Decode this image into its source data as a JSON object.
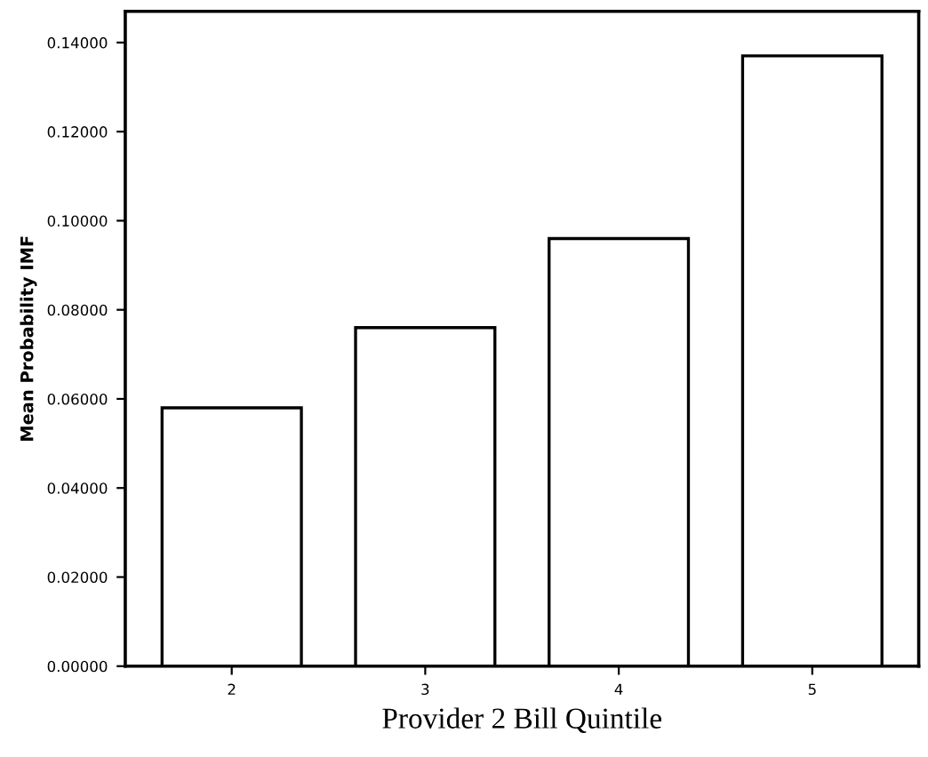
{
  "chart_data": {
    "type": "bar",
    "xlabel": "Provider 2 Bill Quintile",
    "ylabel": "Mean Probability IMF",
    "categories": [
      "2",
      "3",
      "4",
      "5"
    ],
    "values": [
      0.058,
      0.076,
      0.096,
      0.137
    ],
    "color": "#ffffff",
    "ylim": [
      0,
      0.147
    ],
    "yticks": [
      {
        "value": 0,
        "label": "0.00000"
      },
      {
        "value": 0.02,
        "label": "0.02000"
      },
      {
        "value": 0.04,
        "label": "0.04000"
      },
      {
        "value": 0.06,
        "label": "0.06000"
      },
      {
        "value": 0.08,
        "label": "0.08000"
      },
      {
        "value": 0.1,
        "label": "0.10000"
      },
      {
        "value": 0.12,
        "label": "0.12000"
      },
      {
        "value": 0.14,
        "label": "0.14000"
      }
    ],
    "grid": false
  }
}
